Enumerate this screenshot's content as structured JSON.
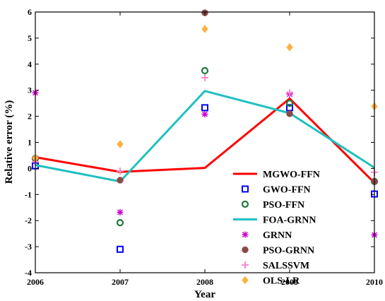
{
  "chart_data": {
    "type": "line",
    "title": "",
    "xlabel": "Year",
    "ylabel": "Relative error (%)",
    "x": [
      2006,
      2007,
      2008,
      2009,
      2010
    ],
    "xlim": [
      2006,
      2010
    ],
    "ylim": [
      -4,
      6
    ],
    "x_ticks": [
      "2006",
      "2007",
      "2008",
      "2009",
      "2010"
    ],
    "y_ticks": [
      "-4",
      "-3",
      "-2",
      "-1",
      "0",
      "1",
      "2",
      "3",
      "4",
      "5",
      "6"
    ],
    "grid": false,
    "legend_position": "lower-right",
    "series": [
      {
        "name": "MGWO-FFN",
        "style": "line",
        "color": "#ff0000",
        "values": [
          0.43,
          -0.13,
          0.02,
          2.68,
          -0.55
        ]
      },
      {
        "name": "GWO-FFN",
        "style": "square",
        "color": "#0000ff",
        "values": [
          0.1,
          -3.1,
          2.33,
          2.33,
          -0.98
        ]
      },
      {
        "name": "PSO-FFN",
        "style": "circle",
        "color": "#1e7b3c",
        "values": [
          0.38,
          -2.08,
          3.75,
          2.5,
          -0.5
        ]
      },
      {
        "name": "FOA-GRNN",
        "style": "line",
        "color": "#20c0c0",
        "values": [
          0.13,
          -0.5,
          2.97,
          2.12,
          0.03
        ]
      },
      {
        "name": "GRNN",
        "style": "star",
        "color": "#cc00cc",
        "values": [
          2.9,
          -1.68,
          2.08,
          2.85,
          -2.55
        ]
      },
      {
        "name": "PSO-GRNN",
        "style": "filled-circle",
        "color": "#8b4a4a",
        "values": [
          0.38,
          -0.45,
          5.97,
          2.1,
          -0.5
        ]
      },
      {
        "name": "SALSSVM",
        "style": "plus",
        "color": "#ff88cc",
        "values": [
          0.25,
          -0.1,
          3.48,
          2.9,
          -0.15
        ]
      },
      {
        "name": "OLS-LR",
        "style": "diamond",
        "color": "#ffb040",
        "values": [
          0.4,
          0.93,
          5.35,
          4.65,
          2.38
        ]
      }
    ]
  }
}
